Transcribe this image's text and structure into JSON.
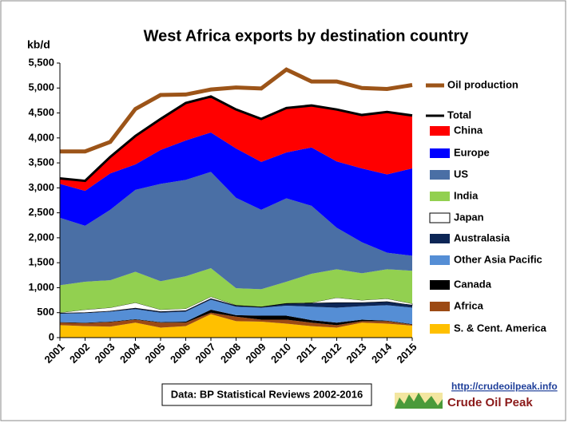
{
  "chart_data": {
    "type": "stacked-area",
    "title": "West Africa exports by destination country",
    "y_label": "kb/d",
    "source": "Data: BP Statistical Reviews 2002-2016",
    "url": "http://crudeoilpeak.info",
    "brand": "Crude Oil Peak",
    "x": [
      2001,
      2002,
      2003,
      2004,
      2005,
      2006,
      2007,
      2008,
      2009,
      2010,
      2011,
      2012,
      2013,
      2014,
      2015
    ],
    "xlim": [
      2001,
      2015
    ],
    "ylim": [
      0,
      5500
    ],
    "yticks": [
      0,
      500,
      {
        "value": 1000,
        "label": "1,000"
      },
      {
        "value": 1500,
        "label": "1,500"
      },
      {
        "value": 2000,
        "label": "2,000"
      },
      {
        "value": 2500,
        "label": "2,500"
      },
      {
        "value": 3000,
        "label": "3,000"
      },
      {
        "value": 3500,
        "label": "3,500"
      },
      {
        "value": 4000,
        "label": "4,000"
      },
      {
        "value": 4500,
        "label": "4,500"
      },
      {
        "value": 5000,
        "label": "5,000"
      },
      {
        "value": 5500,
        "label": "5,500"
      }
    ],
    "grid": false,
    "series": [
      {
        "name": "S. & Cent. America",
        "color": "#ffc000",
        "values": [
          250,
          230,
          220,
          300,
          200,
          230,
          470,
          330,
          320,
          280,
          230,
          200,
          300,
          280,
          240
        ]
      },
      {
        "name": "Africa",
        "color": "#9c4a14",
        "values": [
          50,
          60,
          90,
          60,
          100,
          70,
          30,
          90,
          40,
          80,
          70,
          50,
          30,
          50,
          20
        ]
      },
      {
        "name": "Canada",
        "color": "#000000",
        "values": [
          10,
          10,
          10,
          10,
          10,
          20,
          60,
          30,
          80,
          80,
          50,
          50,
          30,
          10,
          10
        ]
      },
      {
        "name": "Other Asia Pacific",
        "color": "#558ed5",
        "values": [
          170,
          190,
          200,
          200,
          190,
          200,
          200,
          170,
          160,
          200,
          270,
          300,
          270,
          310,
          330
        ]
      },
      {
        "name": "Australasia",
        "color": "#0d2656",
        "values": [
          10,
          10,
          10,
          20,
          20,
          20,
          20,
          20,
          10,
          40,
          70,
          100,
          70,
          70,
          50
        ]
      },
      {
        "name": "Japan",
        "color": "#ffffff",
        "values": [
          10,
          60,
          70,
          110,
          40,
          40,
          40,
          10,
          10,
          10,
          10,
          100,
          50,
          60,
          30
        ]
      },
      {
        "name": "India",
        "color": "#92d050",
        "values": [
          550,
          560,
          550,
          620,
          570,
          650,
          570,
          340,
          350,
          430,
          580,
          570,
          540,
          590,
          660
        ]
      },
      {
        "name": "US",
        "color": "#4a6fa5",
        "values": [
          1350,
          1120,
          1410,
          1640,
          1950,
          1930,
          1930,
          1810,
          1590,
          1670,
          1360,
          830,
          620,
          330,
          300
        ]
      },
      {
        "name": "Europe",
        "color": "#0000ff",
        "values": [
          680,
          700,
          730,
          510,
          680,
          790,
          790,
          990,
          960,
          920,
          1170,
          1330,
          1480,
          1570,
          1750
        ]
      },
      {
        "name": "China",
        "color": "#ff0000",
        "values": [
          110,
          200,
          330,
          570,
          620,
          750,
          720,
          780,
          860,
          890,
          840,
          1040,
          1070,
          1250,
          1060
        ]
      },
      {
        "name": "Total",
        "type": "line",
        "color": "#000000",
        "values": [
          3190,
          3140,
          3620,
          4040,
          4380,
          4700,
          4830,
          4570,
          4380,
          4600,
          4650,
          4570,
          4460,
          4520,
          4450
        ]
      },
      {
        "name": "Oil production",
        "type": "line",
        "color": "#9c5418",
        "values": [
          3730,
          3730,
          3920,
          4580,
          4860,
          4870,
          4970,
          5010,
          4990,
          5370,
          5130,
          5130,
          5000,
          4980,
          5060
        ]
      }
    ]
  }
}
